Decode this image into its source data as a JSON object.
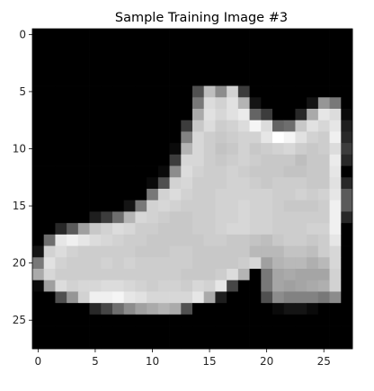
{
  "chart_data": {
    "type": "heatmap",
    "title": "Sample Training Image #3",
    "xlabel": "",
    "ylabel": "",
    "colormap": "gray",
    "value_range": [
      0,
      255
    ],
    "xlim": [
      -0.5,
      27.5
    ],
    "ylim": [
      27.5,
      -0.5
    ],
    "grid": false,
    "xticks": [
      0,
      5,
      10,
      15,
      20,
      25
    ],
    "yticks": [
      0,
      5,
      10,
      15,
      20,
      25
    ],
    "rows": 28,
    "cols": 28,
    "pixels": [
      [
        0,
        0,
        0,
        0,
        0,
        0,
        0,
        0,
        0,
        0,
        0,
        0,
        0,
        0,
        0,
        0,
        0,
        0,
        0,
        0,
        0,
        0,
        0,
        0,
        0,
        0,
        0,
        0
      ],
      [
        0,
        0,
        0,
        0,
        0,
        0,
        0,
        0,
        0,
        0,
        0,
        0,
        0,
        0,
        0,
        0,
        0,
        0,
        0,
        0,
        0,
        0,
        0,
        0,
        0,
        0,
        0,
        0
      ],
      [
        0,
        0,
        0,
        0,
        0,
        0,
        0,
        0,
        0,
        0,
        0,
        0,
        0,
        0,
        0,
        0,
        0,
        0,
        0,
        0,
        0,
        0,
        0,
        0,
        0,
        0,
        0,
        0
      ],
      [
        0,
        0,
        0,
        0,
        0,
        0,
        0,
        0,
        0,
        0,
        0,
        0,
        0,
        0,
        0,
        0,
        0,
        0,
        0,
        0,
        0,
        0,
        0,
        0,
        0,
        0,
        0,
        0
      ],
      [
        0,
        0,
        0,
        0,
        0,
        0,
        0,
        0,
        0,
        0,
        0,
        0,
        0,
        0,
        0,
        0,
        0,
        0,
        0,
        0,
        0,
        0,
        0,
        0,
        0,
        0,
        0,
        0
      ],
      [
        0,
        0,
        0,
        0,
        0,
        0,
        0,
        0,
        0,
        0,
        0,
        0,
        0,
        0,
        80,
        190,
        140,
        210,
        60,
        0,
        0,
        0,
        0,
        0,
        0,
        0,
        0,
        0
      ],
      [
        0,
        0,
        0,
        0,
        0,
        0,
        0,
        0,
        0,
        0,
        0,
        0,
        0,
        0,
        120,
        220,
        210,
        225,
        180,
        20,
        0,
        0,
        0,
        0,
        20,
        150,
        120,
        0
      ],
      [
        0,
        0,
        0,
        0,
        0,
        0,
        0,
        0,
        0,
        0,
        0,
        0,
        0,
        0,
        170,
        225,
        215,
        225,
        235,
        100,
        60,
        0,
        0,
        40,
        170,
        230,
        220,
        10
      ],
      [
        0,
        0,
        0,
        0,
        0,
        0,
        0,
        0,
        0,
        0,
        0,
        0,
        0,
        60,
        200,
        220,
        205,
        210,
        220,
        245,
        220,
        100,
        110,
        200,
        225,
        215,
        230,
        30
      ],
      [
        0,
        0,
        0,
        0,
        0,
        0,
        0,
        0,
        0,
        0,
        0,
        0,
        0,
        130,
        215,
        205,
        200,
        205,
        210,
        210,
        230,
        255,
        245,
        225,
        210,
        205,
        240,
        40
      ],
      [
        0,
        0,
        0,
        0,
        0,
        0,
        0,
        0,
        0,
        0,
        0,
        0,
        10,
        180,
        215,
        205,
        195,
        200,
        210,
        200,
        205,
        210,
        215,
        205,
        200,
        205,
        220,
        60
      ],
      [
        0,
        0,
        0,
        0,
        0,
        0,
        0,
        0,
        0,
        0,
        0,
        0,
        60,
        215,
        215,
        205,
        200,
        205,
        210,
        205,
        200,
        200,
        200,
        190,
        200,
        200,
        235,
        40
      ],
      [
        0,
        0,
        0,
        0,
        0,
        0,
        0,
        0,
        0,
        0,
        0,
        10,
        140,
        220,
        210,
        205,
        205,
        210,
        205,
        200,
        200,
        200,
        195,
        195,
        200,
        200,
        230,
        0
      ],
      [
        0,
        0,
        0,
        0,
        0,
        0,
        0,
        0,
        0,
        0,
        10,
        80,
        210,
        215,
        205,
        205,
        205,
        210,
        210,
        205,
        200,
        205,
        205,
        205,
        200,
        200,
        225,
        40
      ],
      [
        0,
        0,
        0,
        0,
        0,
        0,
        0,
        0,
        0,
        0,
        120,
        210,
        220,
        210,
        205,
        205,
        210,
        210,
        210,
        210,
        210,
        205,
        205,
        210,
        205,
        210,
        230,
        90
      ],
      [
        0,
        0,
        0,
        0,
        0,
        0,
        0,
        0,
        20,
        120,
        210,
        215,
        210,
        205,
        205,
        205,
        210,
        210,
        215,
        210,
        210,
        205,
        200,
        200,
        200,
        205,
        240,
        90
      ],
      [
        0,
        0,
        0,
        0,
        0,
        30,
        60,
        110,
        180,
        215,
        210,
        205,
        200,
        200,
        205,
        205,
        210,
        210,
        215,
        210,
        210,
        205,
        205,
        205,
        205,
        205,
        240,
        40
      ],
      [
        0,
        0,
        40,
        90,
        160,
        200,
        210,
        220,
        215,
        205,
        205,
        200,
        200,
        200,
        205,
        205,
        210,
        215,
        215,
        210,
        210,
        205,
        205,
        205,
        210,
        210,
        240,
        0
      ],
      [
        0,
        110,
        230,
        240,
        230,
        220,
        215,
        210,
        205,
        205,
        200,
        200,
        200,
        200,
        200,
        205,
        205,
        200,
        200,
        195,
        190,
        200,
        205,
        205,
        200,
        205,
        230,
        0
      ],
      [
        20,
        210,
        220,
        210,
        205,
        205,
        205,
        205,
        205,
        200,
        200,
        200,
        205,
        205,
        200,
        200,
        200,
        200,
        200,
        185,
        185,
        185,
        195,
        195,
        190,
        205,
        215,
        0
      ],
      [
        120,
        225,
        210,
        205,
        205,
        205,
        210,
        205,
        210,
        205,
        205,
        205,
        205,
        205,
        200,
        200,
        200,
        200,
        205,
        215,
        160,
        180,
        185,
        185,
        175,
        185,
        215,
        0
      ],
      [
        170,
        215,
        205,
        205,
        205,
        205,
        205,
        205,
        205,
        205,
        205,
        205,
        205,
        200,
        200,
        200,
        205,
        220,
        180,
        0,
        120,
        165,
        170,
        165,
        165,
        165,
        210,
        0
      ],
      [
        10,
        160,
        220,
        210,
        215,
        215,
        220,
        220,
        215,
        210,
        205,
        210,
        210,
        205,
        215,
        210,
        230,
        70,
        0,
        0,
        120,
        165,
        160,
        165,
        170,
        175,
        210,
        0
      ],
      [
        0,
        0,
        80,
        150,
        210,
        240,
        240,
        245,
        230,
        225,
        215,
        215,
        215,
        215,
        230,
        170,
        30,
        0,
        0,
        0,
        80,
        140,
        130,
        130,
        130,
        120,
        140,
        0
      ],
      [
        0,
        0,
        0,
        0,
        0,
        40,
        70,
        110,
        140,
        160,
        170,
        180,
        170,
        80,
        0,
        0,
        0,
        0,
        0,
        0,
        0,
        10,
        20,
        20,
        10,
        0,
        0,
        0
      ],
      [
        0,
        0,
        0,
        0,
        0,
        0,
        0,
        0,
        0,
        0,
        0,
        0,
        0,
        0,
        0,
        0,
        0,
        0,
        0,
        0,
        0,
        0,
        0,
        0,
        0,
        0,
        0,
        0
      ],
      [
        0,
        0,
        0,
        0,
        0,
        0,
        0,
        0,
        0,
        0,
        0,
        0,
        0,
        0,
        0,
        0,
        0,
        0,
        0,
        0,
        0,
        0,
        0,
        0,
        0,
        0,
        0,
        0
      ],
      [
        0,
        0,
        0,
        0,
        0,
        0,
        0,
        0,
        0,
        0,
        0,
        0,
        0,
        0,
        0,
        0,
        0,
        0,
        0,
        0,
        0,
        0,
        0,
        0,
        0,
        0,
        0,
        0
      ]
    ]
  }
}
